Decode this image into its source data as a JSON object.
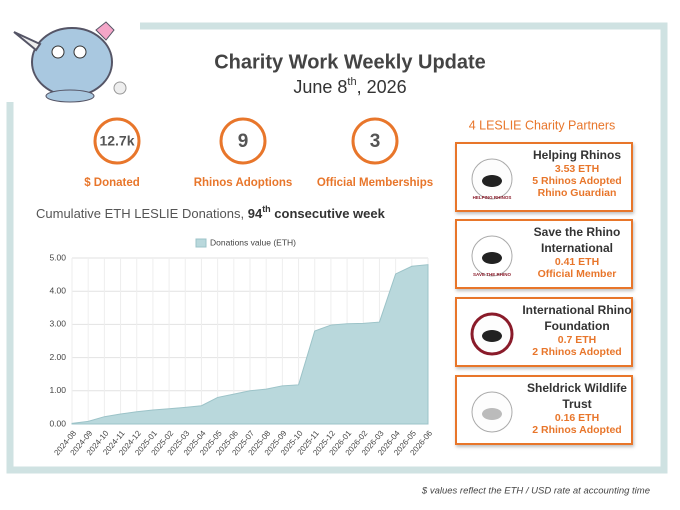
{
  "header": {
    "title": "Charity Work Weekly Update",
    "date_parts": [
      "June 8",
      "th",
      ", 2026"
    ]
  },
  "stats": [
    {
      "value": "12.7k",
      "label": "$ Donated"
    },
    {
      "value": "9",
      "label": "Rhinos Adoptions"
    },
    {
      "value": "3",
      "label": "Official Memberships"
    }
  ],
  "partners": {
    "title": "4 LESLIE Charity Partners",
    "items": [
      {
        "name_lines": [
          "Helping Rhinos"
        ],
        "logo_text": "HELPING RHINOS",
        "lines": [
          "3.53 ETH",
          "5 Rhinos Adopted",
          "Rhino Guardian"
        ]
      },
      {
        "name_lines": [
          "Save the Rhino",
          "International"
        ],
        "logo_text": "SAVE THE RHINO",
        "lines": [
          "0.41 ETH",
          "Official Member"
        ]
      },
      {
        "name_lines": [
          "International Rhino",
          "Foundation"
        ],
        "lines": [
          "0.7 ETH",
          "2 Rhinos Adopted"
        ]
      },
      {
        "name_lines": [
          "Sheldrick Wildlife",
          "Trust"
        ],
        "lines": [
          "0.16 ETH",
          "2 Rhinos Adopted"
        ]
      }
    ]
  },
  "chart_data": {
    "type": "area",
    "title_parts": [
      "Cumulative ETH LESLIE Donations, ",
      "94",
      "th",
      " consecutive week"
    ],
    "categories": [
      "2024-08",
      "2024-09",
      "2024-10",
      "2024-11",
      "2024-12",
      "2025-01",
      "2025-02",
      "2025-03",
      "2025-04",
      "2025-05",
      "2025-06",
      "2025-07",
      "2025-08",
      "2025-09",
      "2025-10",
      "2025-11",
      "2025-12",
      "2026-01",
      "2026-02",
      "2026-03",
      "2026-04",
      "2026-05",
      "2026-06"
    ],
    "series": [
      {
        "name": "Donations value (ETH)",
        "color": "#b9d8dc",
        "values": [
          0.02,
          0.08,
          0.22,
          0.3,
          0.37,
          0.42,
          0.46,
          0.5,
          0.55,
          0.8,
          0.9,
          1.0,
          1.05,
          1.15,
          1.18,
          2.8,
          2.98,
          3.02,
          3.03,
          3.07,
          4.52,
          4.75,
          4.8
        ]
      }
    ],
    "ylim": [
      0,
      5
    ],
    "yticks": [
      {
        "value": 0,
        "label": "0.00"
      },
      {
        "value": 1,
        "label": "1.00"
      },
      {
        "value": 2,
        "label": "2.00"
      },
      {
        "value": 3,
        "label": "3.00"
      },
      {
        "value": 4,
        "label": "4.00"
      },
      {
        "value": 5,
        "label": "5.00"
      }
    ],
    "grid": true
  },
  "footnote": "$ values reflect the ETH / USD rate at accounting time"
}
